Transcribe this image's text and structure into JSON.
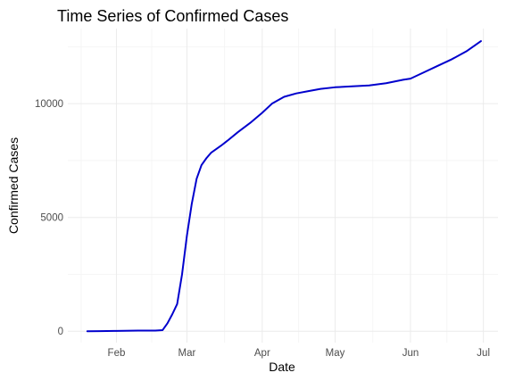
{
  "chart_data": {
    "type": "line",
    "title": "Time Series of Confirmed Cases",
    "xlabel": "Date",
    "ylabel": "Confirmed Cases",
    "x_ticks": [
      {
        "date": "2020-02-01",
        "label": "Feb"
      },
      {
        "date": "2020-03-01",
        "label": "Mar"
      },
      {
        "date": "2020-04-01",
        "label": "Apr"
      },
      {
        "date": "2020-05-01",
        "label": "May"
      },
      {
        "date": "2020-06-01",
        "label": "Jun"
      },
      {
        "date": "2020-07-01",
        "label": "Jul"
      }
    ],
    "y_ticks": [
      {
        "value": 0,
        "label": "0"
      },
      {
        "value": 5000,
        "label": "5000"
      },
      {
        "value": 10000,
        "label": "10000"
      }
    ],
    "xlim": [
      "2020-01-12",
      "2020-07-07"
    ],
    "ylim": [
      -500,
      13300
    ],
    "grid": true,
    "line_color": "#0000CD",
    "series": [
      {
        "x": [
          "2020-01-20",
          "2020-01-25",
          "2020-02-01",
          "2020-02-10",
          "2020-02-17",
          "2020-02-20",
          "2020-02-22",
          "2020-02-24",
          "2020-02-26",
          "2020-02-28",
          "2020-03-01",
          "2020-03-03",
          "2020-03-05",
          "2020-03-07",
          "2020-03-09",
          "2020-03-11",
          "2020-03-13",
          "2020-03-15",
          "2020-03-18",
          "2020-03-22",
          "2020-03-27",
          "2020-04-01",
          "2020-04-05",
          "2020-04-10",
          "2020-04-15",
          "2020-04-20",
          "2020-04-25",
          "2020-05-01",
          "2020-05-08",
          "2020-05-15",
          "2020-05-22",
          "2020-05-29",
          "2020-06-01",
          "2020-06-06",
          "2020-06-12",
          "2020-06-18",
          "2020-06-24",
          "2020-06-30"
        ],
        "y": [
          0,
          5,
          15,
          30,
          30,
          50,
          350,
          750,
          1200,
          2500,
          4200,
          5600,
          6700,
          7300,
          7600,
          7850,
          8000,
          8150,
          8400,
          8750,
          9150,
          9600,
          10000,
          10300,
          10450,
          10550,
          10650,
          10720,
          10760,
          10800,
          10900,
          11050,
          11100,
          11350,
          11650,
          11950,
          12300,
          12750
        ]
      }
    ]
  }
}
